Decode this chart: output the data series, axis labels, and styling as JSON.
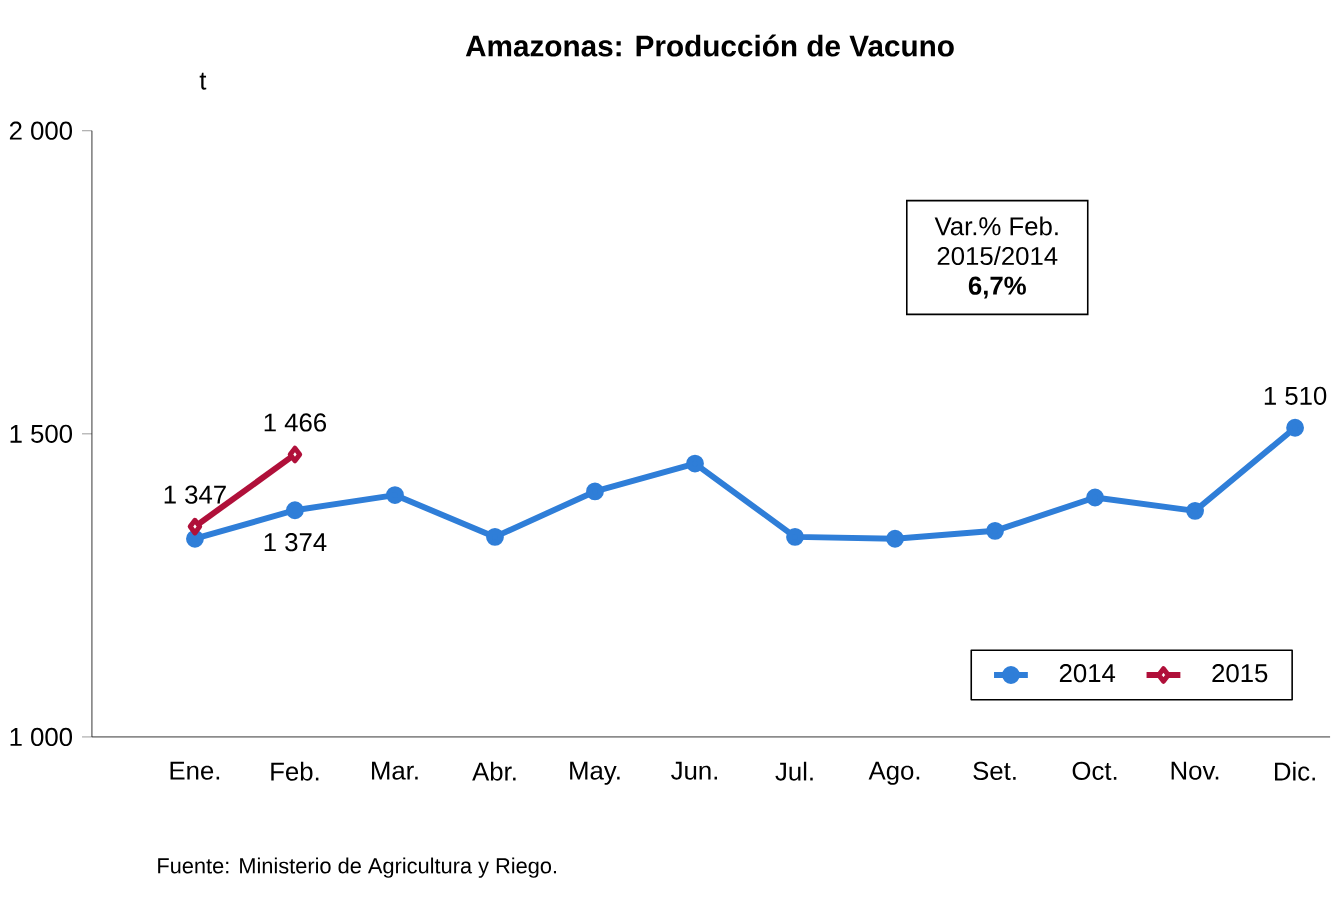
{
  "chart_data": {
    "type": "line",
    "title": "Amazonas: Producción de Vacuno",
    "ylabel": "t",
    "categories": [
      "Ene.",
      "Feb.",
      "Mar.",
      "Abr.",
      "May.",
      "Jun.",
      "Jul.",
      "Ago.",
      "Set.",
      "Oct.",
      "Nov.",
      "Dic."
    ],
    "series": [
      {
        "name": "2014",
        "color": "#2f7ed8",
        "marker": "circle",
        "values": [
          1327,
          1374,
          1399,
          1330,
          1405,
          1451,
          1330,
          1327,
          1340,
          1395,
          1373,
          1510
        ],
        "value_labels": [
          null,
          "1 374",
          null,
          null,
          null,
          null,
          null,
          null,
          null,
          null,
          null,
          "1 510"
        ]
      },
      {
        "name": "2015",
        "color": "#b0103a",
        "marker": "diamond",
        "values": [
          1347,
          1466,
          null,
          null,
          null,
          null,
          null,
          null,
          null,
          null,
          null,
          null
        ],
        "value_labels": [
          "1 347",
          "1 466",
          null,
          null,
          null,
          null,
          null,
          null,
          null,
          null,
          null,
          null
        ]
      }
    ],
    "ylim": [
      1000,
      2000
    ],
    "yticks": [
      {
        "value": 1000,
        "label": "1 000"
      },
      {
        "value": 1500,
        "label": "1 500"
      },
      {
        "value": 2000,
        "label": "2 000"
      }
    ],
    "grid": false,
    "legend": "bottom right",
    "line_style": "solid",
    "annotations": [
      "Var.% Feb.",
      "2015/2014",
      "6,7%",
      "Fuente: Ministerio de Agricultura y Riego."
    ]
  }
}
